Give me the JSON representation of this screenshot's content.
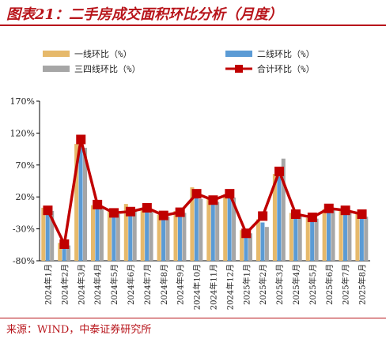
{
  "title": "图表21：二手房成交面积环比分析（月度）",
  "source": "来源：WIND，中泰证券研究所",
  "colors": {
    "tier1": "#e6b96b",
    "tier2": "#5b9bd5",
    "tier34": "#a6a6a6",
    "total": "#c00000",
    "accent": "#b8151b"
  },
  "chart_data": {
    "type": "bar",
    "categories": [
      "2024年1月",
      "2024年2月",
      "2024年3月",
      "2024年4月",
      "2024年5月",
      "2024年6月",
      "2024年7月",
      "2024年8月",
      "2024年9月",
      "2024年10月",
      "2024年11月",
      "2024年12月",
      "2025年1月",
      "2025年2月",
      "2025年3月",
      "2025年4月",
      "2025年5月",
      "2025年6月",
      "2025年7月",
      "2025年8月"
    ],
    "series": [
      {
        "name": "一线环比（%）",
        "kind": "bar",
        "values": [
          3,
          -52,
          103,
          7,
          -1,
          9,
          3,
          -8,
          -2,
          35,
          17,
          24,
          -32,
          -15,
          56,
          -5,
          -13,
          1,
          -2,
          -6
        ]
      },
      {
        "name": "二线环比（%）",
        "kind": "bar",
        "values": [
          -2,
          -55,
          100,
          3,
          -6,
          2,
          1,
          -9,
          -4,
          22,
          15,
          20,
          -36,
          -20,
          52,
          -8,
          -15,
          3,
          -3,
          -9
        ]
      },
      {
        "name": "三四线环比（%）",
        "kind": "bar",
        "values": [
          -2,
          -56,
          97,
          2,
          -7,
          -2,
          -1,
          -11,
          -5,
          17,
          12,
          19,
          -37,
          -27,
          80,
          -9,
          -14,
          2,
          -2,
          -11
        ]
      },
      {
        "name": "合计环比（%）",
        "kind": "line",
        "values": [
          -1,
          -54,
          110,
          8,
          -5,
          -3,
          3,
          -9,
          -4,
          25,
          15,
          25,
          -37,
          -10,
          60,
          -7,
          -12,
          2,
          -1,
          -7
        ]
      }
    ],
    "yticks": [
      "170%",
      "120%",
      "70%",
      "20%",
      "-30%",
      "-80%"
    ],
    "ylim": [
      -80,
      170
    ],
    "xlabel": "",
    "ylabel": "",
    "legend_position": "top",
    "grid": false
  }
}
